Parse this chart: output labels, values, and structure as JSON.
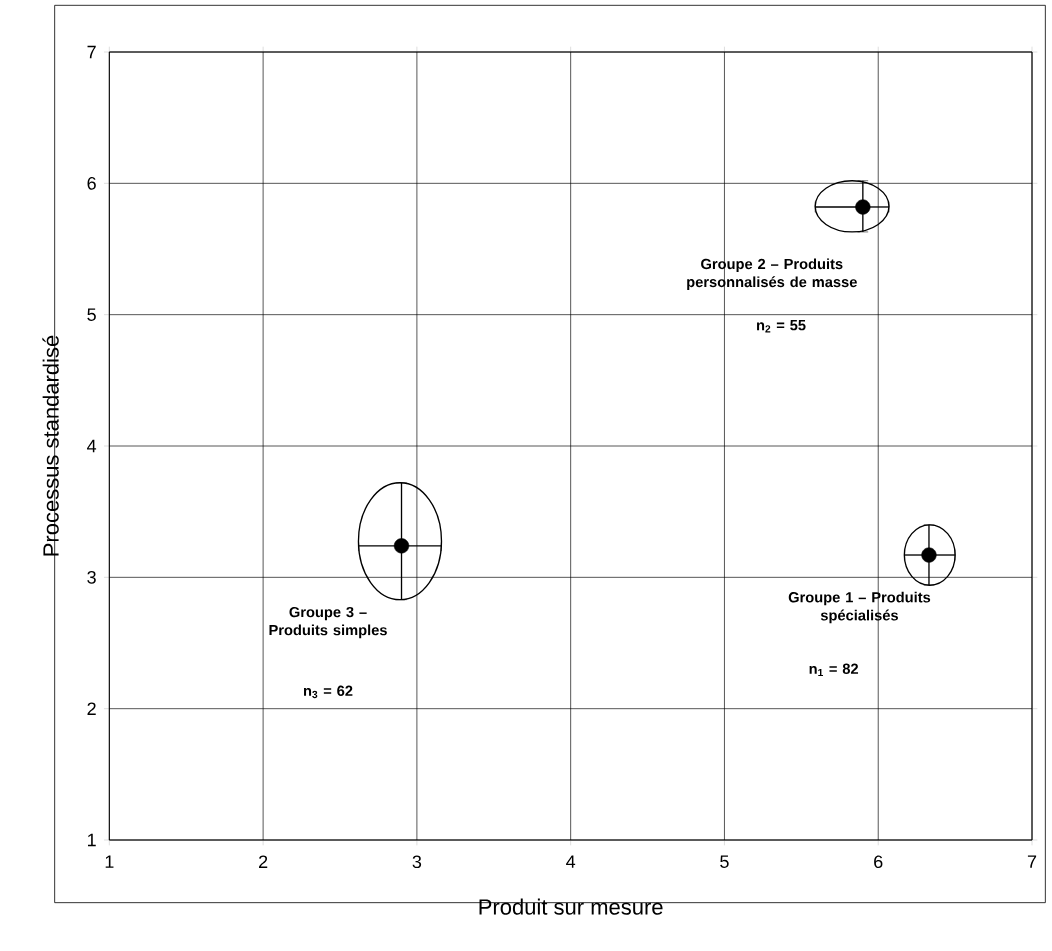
{
  "chart_data": {
    "type": "scatter",
    "xlabel": "Produit sur mesure",
    "ylabel": "Processus standardisé",
    "x": [
      6.33,
      5.9,
      2.9
    ],
    "values": [
      3.17,
      5.82,
      3.24
    ],
    "errors": [
      [
        2.94,
        3.4
      ],
      [
        5.63,
        6.02
      ],
      [
        2.83,
        3.72
      ]
    ],
    "xerrors": [
      [
        6.17,
        6.5
      ],
      [
        5.59,
        6.07
      ],
      [
        2.62,
        3.16
      ]
    ],
    "color": "#000000",
    "xlim": [
      1,
      7
    ],
    "ylim": [
      1,
      7
    ],
    "xticks": [
      1,
      2,
      3,
      4,
      5,
      6,
      7
    ],
    "yticks": [
      1,
      2,
      3,
      4,
      5,
      6,
      7
    ],
    "grid": true,
    "annotations": [
      "Groupe 1 – Produits spécialisés",
      "n$_{1}$ = 82",
      "Groupe 2 – Produits personnalisés de masse",
      "n$_{2}$ = 55",
      "Groupe 3 – Produits simples",
      "n$_{3}$ = 62"
    ]
  }
}
